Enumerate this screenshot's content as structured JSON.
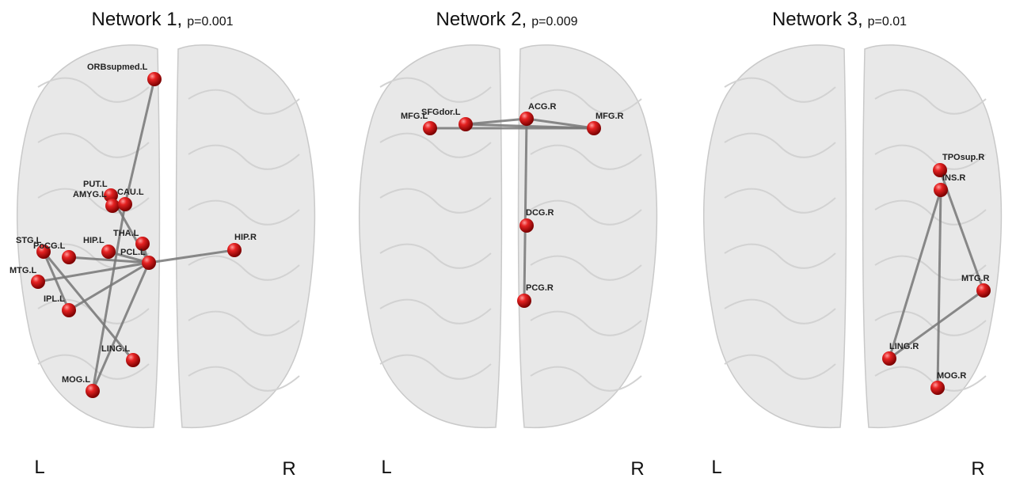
{
  "panels": [
    {
      "title": "Network 1,",
      "p_value": "p=0.001",
      "left_label": "L",
      "right_label": "R",
      "nodes": [
        "ORBsupmed.L",
        "PUT.L",
        "AMYG.L",
        "CAU.L",
        "THA.L",
        "HIP.L",
        "PCL.L",
        "STG.L",
        "PoCG.L",
        "MTG.L",
        "IPL.L",
        "LING.L",
        "MOG.L",
        "HIP.R"
      ]
    },
    {
      "title": "Network 2,",
      "p_value": "p=0.009",
      "left_label": "L",
      "right_label": "R",
      "nodes": [
        "MFG.L",
        "SFGdor.L",
        "ACG.R",
        "MFG.R",
        "DCG.R",
        "PCG.R"
      ]
    },
    {
      "title": "Network 3,",
      "p_value": "p=0.01",
      "left_label": "L",
      "right_label": "R",
      "nodes": [
        "TPOsup.R",
        "INS.R",
        "MTG.R",
        "LING.R",
        "MOG.R"
      ]
    }
  ]
}
